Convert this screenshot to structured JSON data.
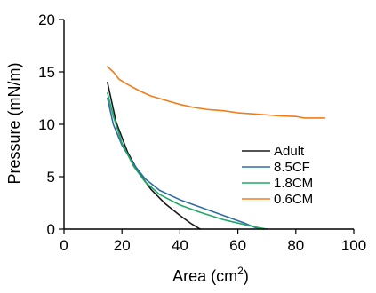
{
  "chart_data": {
    "type": "line",
    "title": "",
    "xlabel": {
      "text": "Area (cm",
      "sup": "2",
      "close": ")"
    },
    "ylabel": "Pressure (mN/m)",
    "xlim": [
      0,
      100
    ],
    "ylim": [
      0,
      20
    ],
    "xticks": [
      0,
      20,
      40,
      60,
      80,
      100
    ],
    "yticks": [
      0,
      5,
      10,
      15,
      20
    ],
    "xtick_labels": [
      "0",
      "20",
      "40",
      "60",
      "80",
      "100"
    ],
    "ytick_labels": [
      "0",
      "5",
      "10",
      "15",
      "20"
    ],
    "grid": false,
    "legend_position": "right",
    "series": [
      {
        "name": "Adult",
        "color": "#1a1a1a",
        "x": [
          15,
          18,
          22,
          26,
          30,
          35,
          40,
          44,
          47
        ],
        "y": [
          14.0,
          10.2,
          7.3,
          5.3,
          3.8,
          2.4,
          1.3,
          0.5,
          0.0
        ]
      },
      {
        "name": "8.5CF",
        "color": "#2f6da5",
        "x": [
          15,
          17,
          20,
          24,
          28,
          33,
          40,
          47,
          55,
          62,
          66,
          69
        ],
        "y": [
          12.5,
          10.0,
          8.0,
          6.2,
          4.8,
          3.7,
          2.8,
          2.1,
          1.3,
          0.6,
          0.15,
          0.0
        ]
      },
      {
        "name": "1.8CM",
        "color": "#21a865",
        "x": [
          15,
          17,
          20,
          24,
          28,
          33,
          40,
          47,
          55,
          62,
          67,
          70
        ],
        "y": [
          13.0,
          10.8,
          8.2,
          6.0,
          4.5,
          3.3,
          2.3,
          1.6,
          0.9,
          0.45,
          0.15,
          0.0
        ]
      },
      {
        "name": "0.6CM",
        "color": "#f07d1a",
        "x": [
          15,
          17,
          19,
          22,
          26,
          30,
          35,
          40,
          45,
          50,
          55,
          60,
          65,
          70,
          75,
          80,
          83,
          90
        ],
        "y": [
          15.5,
          15.0,
          14.3,
          13.8,
          13.2,
          12.7,
          12.3,
          11.9,
          11.6,
          11.4,
          11.3,
          11.1,
          11.0,
          10.9,
          10.8,
          10.75,
          10.6,
          10.6
        ]
      }
    ]
  }
}
